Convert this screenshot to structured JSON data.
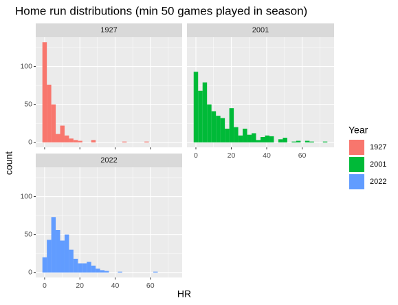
{
  "title": "Home run distributions (min 50 games played in season)",
  "x_label": "HR",
  "y_label": "count",
  "legend": {
    "title": "Year"
  },
  "chart_data": [
    {
      "type": "histogram",
      "name": "1927",
      "color": "#F8766D",
      "bins": [
        -1.26,
        1.26,
        3.78,
        6.29,
        8.81,
        11.33,
        13.84,
        16.36,
        18.88,
        21.4,
        23.91,
        26.43,
        28.95,
        31.47,
        33.98,
        36.5,
        39.02,
        41.53,
        44.05,
        46.57,
        49.09,
        51.6,
        54.12,
        56.64,
        59.16,
        61.67,
        64.19,
        66.71,
        69.22,
        71.74,
        74.26
      ],
      "values": [
        132,
        76,
        50,
        11,
        22,
        9,
        5,
        3,
        2,
        0,
        0,
        3,
        0,
        0,
        0,
        0,
        0,
        0,
        1,
        0,
        0,
        0,
        0,
        1,
        0,
        0,
        0,
        0,
        0,
        0
      ],
      "xlim": [
        -5.04,
        78.04
      ],
      "ylim": [
        -6.6,
        138.6
      ],
      "xticks": [
        0,
        20,
        40,
        60
      ],
      "yticks": [
        0,
        50,
        100
      ],
      "minor_xticks": [
        10,
        30,
        50,
        70
      ],
      "minor_yticks": [
        25,
        75,
        125
      ],
      "show_xtick_labels": false,
      "show_ytick_labels": true,
      "grid": true
    },
    {
      "type": "histogram",
      "name": "2001",
      "color": "#00BA38",
      "bins": [
        -1.26,
        1.26,
        3.78,
        6.29,
        8.81,
        11.33,
        13.84,
        16.36,
        18.88,
        21.4,
        23.91,
        26.43,
        28.95,
        31.47,
        33.98,
        36.5,
        39.02,
        41.53,
        44.05,
        46.57,
        49.09,
        51.6,
        54.12,
        56.64,
        59.16,
        61.67,
        64.19,
        66.71,
        69.22,
        71.74,
        74.26
      ],
      "values": [
        93,
        68,
        79,
        50,
        41,
        35,
        32,
        18,
        45,
        20,
        9,
        18,
        10,
        12,
        3,
        7,
        9,
        8,
        0,
        4,
        6,
        0,
        1,
        2,
        0,
        2,
        1,
        0,
        0,
        1
      ],
      "xlim": [
        -5.04,
        78.04
      ],
      "ylim": [
        -6.6,
        138.6
      ],
      "xticks": [
        0,
        20,
        40,
        60
      ],
      "yticks": [
        0,
        50,
        100
      ],
      "minor_xticks": [
        10,
        30,
        50,
        70
      ],
      "minor_yticks": [
        25,
        75,
        125
      ],
      "show_xtick_labels": true,
      "show_ytick_labels": false,
      "grid": true
    },
    {
      "type": "histogram",
      "name": "2022",
      "color": "#619CFF",
      "bins": [
        -1.26,
        1.26,
        3.78,
        6.29,
        8.81,
        11.33,
        13.84,
        16.36,
        18.88,
        21.4,
        23.91,
        26.43,
        28.95,
        31.47,
        33.98,
        36.5,
        39.02,
        41.53,
        44.05,
        46.57,
        49.09,
        51.6,
        54.12,
        56.64,
        59.16,
        61.67,
        64.19,
        66.71,
        69.22,
        71.74,
        74.26
      ],
      "values": [
        20,
        43,
        73,
        56,
        42,
        50,
        30,
        18,
        12,
        12,
        14,
        9,
        5,
        3,
        2,
        0,
        0,
        1,
        0,
        0,
        0,
        0,
        0,
        0,
        0,
        1,
        0,
        0,
        0,
        0
      ],
      "xlim": [
        -5.04,
        78.04
      ],
      "ylim": [
        -6.6,
        138.6
      ],
      "xticks": [
        0,
        20,
        40,
        60
      ],
      "yticks": [
        0,
        50,
        100
      ],
      "minor_xticks": [
        10,
        30,
        50,
        70
      ],
      "minor_yticks": [
        25,
        75,
        125
      ],
      "show_xtick_labels": true,
      "show_ytick_labels": true,
      "grid": true
    }
  ]
}
